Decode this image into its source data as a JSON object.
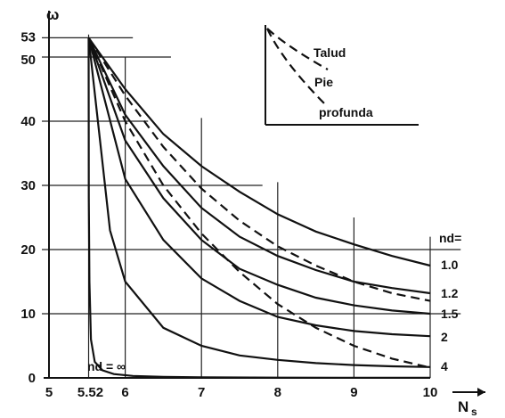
{
  "chart_data": {
    "type": "line",
    "xlabel": "N",
    "xlabel_sub": "s",
    "ylabel": "ω",
    "xlim": [
      5,
      10
    ],
    "ylim": [
      0,
      55
    ],
    "x_ticks": [
      5,
      5.52,
      6,
      7,
      8,
      9,
      10
    ],
    "x_tick_labels": [
      "5",
      "5.52",
      "6",
      "7",
      "8",
      "9",
      "10"
    ],
    "y_ticks": [
      0,
      10,
      20,
      30,
      40,
      50,
      53
    ],
    "y_tick_labels": [
      "0",
      "10",
      "20",
      "30",
      "40",
      "50",
      "53"
    ],
    "grid": "partial",
    "nd_header": "nd=",
    "nd_inf_label": "nd = ∞",
    "series": [
      {
        "name": "1.0",
        "style": "solid",
        "x": [
          5.52,
          6,
          6.5,
          7,
          7.5,
          8,
          8.5,
          9,
          9.5,
          10
        ],
        "y": [
          53,
          45,
          38,
          33,
          29,
          25.5,
          22.8,
          20.8,
          19,
          17.5
        ]
      },
      {
        "name": "1.2",
        "style": "solid",
        "x": [
          5.52,
          6,
          6.5,
          7,
          7.5,
          8,
          8.5,
          9,
          9.5,
          10
        ],
        "y": [
          53,
          41,
          33,
          26.5,
          22,
          19,
          16.8,
          15,
          14,
          13.2
        ]
      },
      {
        "name": "1.5",
        "style": "solid",
        "x": [
          5.52,
          6,
          6.5,
          7,
          7.5,
          8,
          8.5,
          9,
          9.5,
          10
        ],
        "y": [
          53,
          37,
          28,
          21.5,
          17,
          14.5,
          12.5,
          11.3,
          10.5,
          10
        ]
      },
      {
        "name": "2",
        "style": "solid",
        "x": [
          5.52,
          6,
          6.5,
          7,
          7.5,
          8,
          8.5,
          9,
          9.5,
          10
        ],
        "y": [
          53,
          31,
          21.5,
          15.5,
          12,
          9.5,
          8.2,
          7.3,
          6.8,
          6.5
        ]
      },
      {
        "name": "4",
        "style": "solid",
        "x": [
          5.52,
          5.8,
          6,
          6.5,
          7,
          7.5,
          8,
          8.5,
          9,
          9.5,
          10
        ],
        "y": [
          53,
          23,
          15,
          7.8,
          5,
          3.5,
          2.8,
          2.3,
          2,
          1.8,
          1.7
        ]
      },
      {
        "name": "∞",
        "style": "solid",
        "x": [
          5.52,
          5.522,
          5.53,
          5.55,
          5.6,
          5.7,
          5.85,
          6.1,
          6.5,
          7,
          8,
          9,
          10
        ],
        "y": [
          53,
          28,
          15,
          6,
          2.5,
          1.2,
          0.6,
          0.3,
          0.15,
          0.08,
          0.04,
          0.02,
          0.01
        ]
      },
      {
        "name": "",
        "style": "dashed",
        "x": [
          5.52,
          6,
          6.5,
          7,
          7.5,
          8,
          8.5,
          9,
          9.5,
          10
        ],
        "y": [
          53,
          44,
          36,
          29.5,
          24.5,
          20.5,
          17.5,
          15,
          13.2,
          12
        ]
      },
      {
        "name": "",
        "style": "dashed",
        "x": [
          5.52,
          6,
          6.5,
          7,
          7.5,
          8,
          8.5,
          9,
          9.5,
          10
        ],
        "y": [
          53,
          40,
          30,
          22.5,
          16.5,
          11.5,
          7.8,
          5,
          3,
          1.6
        ]
      }
    ],
    "inset": {
      "labels": [
        "Talud",
        "Pie",
        "profunda"
      ]
    }
  }
}
